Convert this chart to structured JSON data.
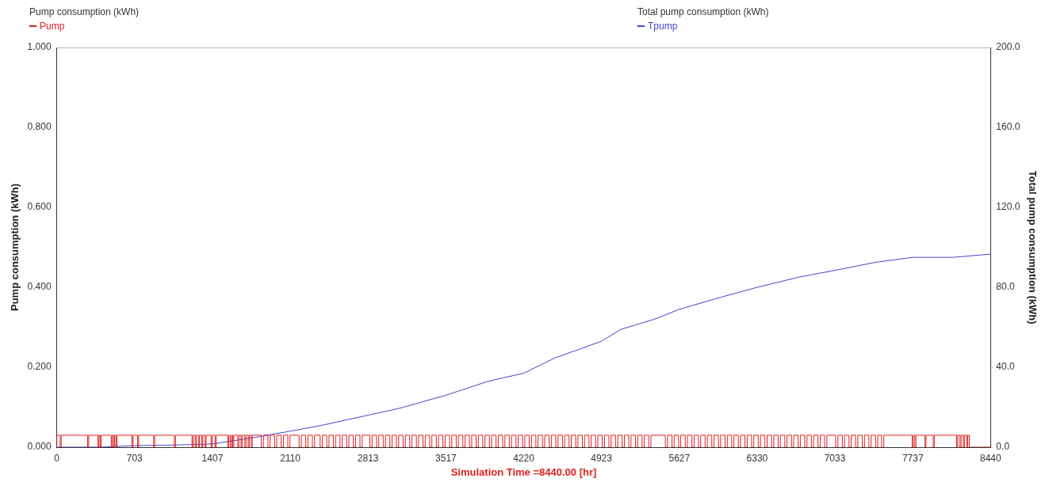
{
  "chart_data": {
    "type": "line",
    "xlabel": "Simulation Time =8440.00 [hr]",
    "ylabel": "Pump consumption (kWh)",
    "y2label": "Total pump consumption (kWh)",
    "annotations": [
      "Pump consumption (kWh)",
      "Total pump consumption (kWh)"
    ],
    "xlim": [
      0,
      8440
    ],
    "xticks": [
      0,
      703,
      1407,
      2110,
      2813,
      3517,
      4220,
      4923,
      5627,
      6330,
      7033,
      7737,
      8440
    ],
    "ylim": [
      0,
      1
    ],
    "yticks": [
      {
        "value": 0,
        "label": "0.000"
      },
      {
        "value": 0.2,
        "label": "0.200"
      },
      {
        "value": 0.4,
        "label": "0.400"
      },
      {
        "value": 0.6,
        "label": "0.600"
      },
      {
        "value": 0.8,
        "label": "0.800"
      },
      {
        "value": 1,
        "label": "1.000"
      }
    ],
    "y2lim": [
      0,
      200
    ],
    "y2ticks": [
      {
        "value": 0,
        "label": "0.0"
      },
      {
        "value": 40,
        "label": "40.0"
      },
      {
        "value": 80,
        "label": "80.0"
      },
      {
        "value": 120,
        "label": "120.0"
      },
      {
        "value": 160,
        "label": "160.0"
      },
      {
        "value": 200,
        "label": "200.0"
      }
    ],
    "grid": false,
    "legend": "top",
    "marker": "none",
    "series": [
      {
        "name": "Pump",
        "type": "step",
        "color": "#dd2222",
        "x": [
          0,
          30,
          40,
          278,
          288,
          371,
          381,
          392,
          402,
          492,
          502,
          513,
          523,
          534,
          544,
          679,
          689,
          730,
          740,
          875,
          885,
          1063,
          1073,
          1222,
          1232,
          1250,
          1260,
          1280,
          1290,
          1310,
          1320,
          1340,
          1350,
          1394,
          1404,
          1430,
          1440,
          1545,
          1555,
          1570,
          1580,
          1590,
          1600,
          1636,
          1646,
          1665,
          1675,
          1700,
          1710,
          1730,
          1740,
          1757,
          1767,
          1848,
          1868,
          1908,
          1928,
          1968,
          1988,
          2028,
          2048,
          2088,
          2108,
          2190,
          2210,
          2250,
          2270,
          2310,
          2330,
          2380,
          2400,
          2440,
          2460,
          2500,
          2520,
          2560,
          2580,
          2620,
          2640,
          2680,
          2700,
          2740,
          2760,
          2830,
          2850,
          2890,
          2910,
          2950,
          2970,
          3010,
          3030,
          3070,
          3090,
          3130,
          3150,
          3190,
          3210,
          3250,
          3270,
          3310,
          3330,
          3370,
          3390,
          3430,
          3450,
          3490,
          3510,
          3550,
          3570,
          3610,
          3630,
          3670,
          3690,
          3730,
          3750,
          3790,
          3810,
          3850,
          3870,
          3910,
          3930,
          3970,
          3990,
          4030,
          4050,
          4090,
          4110,
          4150,
          4170,
          4210,
          4230,
          4270,
          4290,
          4330,
          4350,
          4390,
          4410,
          4450,
          4470,
          4510,
          4530,
          4570,
          4590,
          4630,
          4650,
          4690,
          4710,
          4750,
          4770,
          4810,
          4830,
          4870,
          4890,
          4930,
          4950,
          4990,
          5010,
          5050,
          5070,
          5110,
          5130,
          5170,
          5190,
          5230,
          5250,
          5290,
          5310,
          5350,
          5370,
          5500,
          5520,
          5560,
          5580,
          5620,
          5640,
          5680,
          5700,
          5740,
          5760,
          5800,
          5820,
          5860,
          5880,
          5920,
          5940,
          5980,
          6000,
          6040,
          6060,
          6100,
          6120,
          6160,
          6180,
          6220,
          6240,
          6280,
          6300,
          6340,
          6360,
          6400,
          6420,
          6460,
          6480,
          6520,
          6540,
          6580,
          6600,
          6640,
          6660,
          6700,
          6720,
          6760,
          6780,
          6820,
          6840,
          6880,
          6900,
          6940,
          6960,
          7040,
          7060,
          7100,
          7120,
          7160,
          7180,
          7220,
          7240,
          7280,
          7300,
          7340,
          7360,
          7400,
          7420,
          7455,
          7475,
          7731,
          7741,
          7755,
          7765,
          7846,
          7856,
          7921,
          7931,
          8133,
          8143,
          8163,
          8173,
          8193,
          8203,
          8223,
          8233,
          8248,
          8268,
          8440
        ],
        "values": [
          0,
          0.03,
          0,
          0.03,
          0,
          0.03,
          0,
          0.03,
          0,
          0.03,
          0,
          0.03,
          0,
          0.03,
          0,
          0.03,
          0,
          0.03,
          0,
          0.03,
          0,
          0.03,
          0,
          0.03,
          0,
          0.03,
          0,
          0.03,
          0,
          0.03,
          0,
          0.03,
          0,
          0.03,
          0,
          0.03,
          0,
          0.03,
          0,
          0.03,
          0,
          0.03,
          0,
          0.03,
          0,
          0.03,
          0,
          0.03,
          0,
          0.03,
          0,
          0.03,
          0,
          0.03,
          0,
          0.03,
          0,
          0.03,
          0,
          0.03,
          0,
          0.03,
          0,
          0.03,
          0,
          0.03,
          0,
          0.03,
          0,
          0.03,
          0,
          0.03,
          0,
          0.03,
          0,
          0.03,
          0,
          0.03,
          0,
          0.03,
          0,
          0.03,
          0,
          0.03,
          0,
          0.03,
          0,
          0.03,
          0,
          0.03,
          0,
          0.03,
          0,
          0.03,
          0,
          0.03,
          0,
          0.03,
          0,
          0.03,
          0,
          0.03,
          0,
          0.03,
          0,
          0.03,
          0,
          0.03,
          0,
          0.03,
          0,
          0.03,
          0,
          0.03,
          0,
          0.03,
          0,
          0.03,
          0,
          0.03,
          0,
          0.03,
          0,
          0.03,
          0,
          0.03,
          0,
          0.03,
          0,
          0.03,
          0,
          0.03,
          0,
          0.03,
          0,
          0.03,
          0,
          0.03,
          0,
          0.03,
          0,
          0.03,
          0,
          0.03,
          0,
          0.03,
          0,
          0.03,
          0,
          0.03,
          0,
          0.03,
          0,
          0.03,
          0,
          0.03,
          0,
          0.03,
          0,
          0.03,
          0,
          0.03,
          0,
          0.03,
          0,
          0.03,
          0,
          0.03,
          0,
          0.03,
          0,
          0.03,
          0,
          0.03,
          0,
          0.03,
          0,
          0.03,
          0,
          0.03,
          0,
          0.03,
          0,
          0.03,
          0,
          0.03,
          0,
          0.03,
          0,
          0.03,
          0,
          0.03,
          0,
          0.03,
          0,
          0.03,
          0,
          0.03,
          0,
          0.03,
          0,
          0.03,
          0,
          0.03,
          0,
          0.03,
          0,
          0.03,
          0,
          0.03,
          0,
          0.03,
          0,
          0.03,
          0,
          0.03,
          0,
          0.03,
          0,
          0.03,
          0,
          0.03,
          0,
          0.03,
          0,
          0.03,
          0,
          0.03,
          0,
          0.03,
          0,
          0.03,
          0,
          0.03,
          0,
          0.03,
          0,
          0.03,
          0,
          0.03,
          0,
          0.03,
          0,
          0.03,
          0,
          0.03,
          0,
          0.03,
          0,
          0.03,
          0,
          0.03,
          0,
          0
        ]
      },
      {
        "name": "Tpump",
        "type": "line",
        "axis": "y2",
        "color": "#4444cc",
        "x": [
          0,
          400,
          703,
          1000,
          1407,
          1800,
          2110,
          2400,
          2813,
          3100,
          3517,
          3900,
          4220,
          4500,
          4923,
          5100,
          5400,
          5627,
          6000,
          6330,
          6700,
          7033,
          7400,
          7737,
          8100,
          8440
        ],
        "values": [
          0,
          0,
          0.8,
          1,
          1.6,
          5,
          8,
          11,
          16,
          19.5,
          26,
          33,
          37,
          44.6,
          53,
          59,
          64,
          69,
          75,
          80,
          85,
          88.5,
          92.5,
          95,
          95,
          96.6
        ]
      }
    ]
  }
}
